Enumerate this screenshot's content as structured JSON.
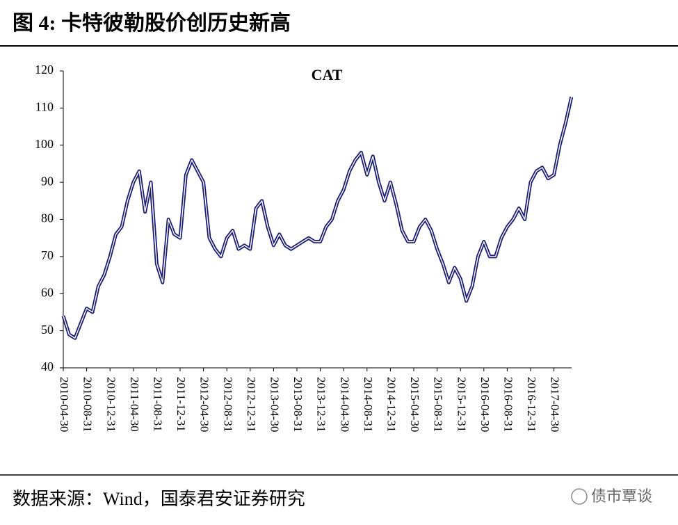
{
  "header": {
    "title": "图 4: 卡特彼勒股价创历史新高"
  },
  "chart_data": {
    "type": "line",
    "title": "CAT",
    "categories": [
      "2010-04-30",
      null,
      null,
      null,
      "2010-08-31",
      null,
      null,
      null,
      "2010-12-31",
      null,
      null,
      null,
      "2011-04-30",
      null,
      null,
      null,
      "2011-08-31",
      null,
      null,
      null,
      "2011-12-31",
      null,
      null,
      null,
      "2012-04-30",
      null,
      null,
      null,
      "2012-08-31",
      null,
      null,
      null,
      "2012-12-31",
      null,
      null,
      null,
      "2013-04-30",
      null,
      null,
      null,
      "2013-08-31",
      null,
      null,
      null,
      "2013-12-31",
      null,
      null,
      null,
      "2014-04-30",
      null,
      null,
      null,
      "2014-08-31",
      null,
      null,
      null,
      "2014-12-31",
      null,
      null,
      null,
      "2015-04-30",
      null,
      null,
      null,
      "2015-08-31",
      null,
      null,
      null,
      "2015-12-31",
      null,
      null,
      null,
      "2016-04-30",
      null,
      null,
      null,
      "2016-08-31",
      null,
      null,
      null,
      "2016-12-31",
      null,
      null,
      null,
      "2017-04-30",
      null,
      null,
      null
    ],
    "series": [
      {
        "color": "#1c1c7a",
        "values": [
          54,
          49,
          48,
          52,
          56,
          55,
          62,
          65,
          70,
          76,
          78,
          85,
          90,
          93,
          82,
          90,
          68,
          63,
          80,
          76,
          75,
          92,
          96,
          93,
          90,
          75,
          72,
          70,
          75,
          77,
          72,
          73,
          72,
          83,
          85,
          78,
          73,
          76,
          73,
          72,
          73,
          74,
          75,
          74,
          74,
          78,
          80,
          85,
          88,
          93,
          96,
          98,
          92,
          97,
          90,
          85,
          90,
          84,
          77,
          74,
          74,
          78,
          80,
          77,
          72,
          68,
          63,
          67,
          64,
          58,
          62,
          70,
          74,
          70,
          70,
          75,
          78,
          80,
          83,
          80,
          90,
          93,
          94,
          91,
          92,
          100,
          106,
          113
        ]
      }
    ],
    "ylim": [
      40,
      120
    ],
    "yticks": [
      40,
      50,
      60,
      70,
      80,
      90,
      100,
      110,
      120
    ]
  },
  "footer": {
    "source": "数据来源：Wind，国泰君安证券研究",
    "watermark": "债市覃谈"
  }
}
